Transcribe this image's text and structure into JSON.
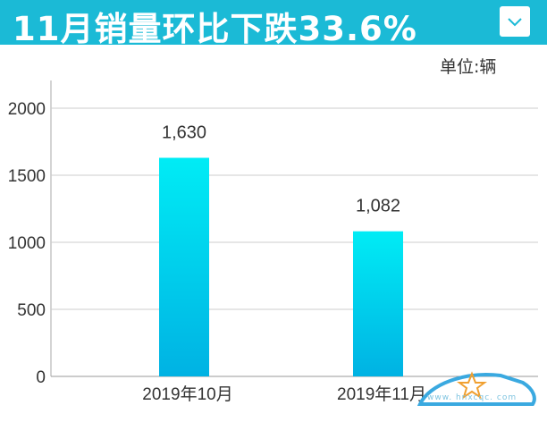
{
  "header": {
    "title": "11月销量环比下跌33.6%",
    "dropdown_icon": "chevron-down-icon"
  },
  "unit_label": "单位:辆",
  "watermark": {
    "text": "www. hnxcqc. com"
  },
  "chart_data": {
    "type": "bar",
    "title": "11月销量环比下跌33.6%",
    "categories": [
      "2019年10月",
      "2019年11月"
    ],
    "values": [
      1630,
      1082
    ],
    "data_labels": [
      "1,630",
      "1,082"
    ],
    "yticks": [
      "0",
      "500",
      "1000",
      "1500",
      "2000"
    ],
    "ylim": [
      0,
      2000
    ],
    "grid": true,
    "unit": "单位:辆",
    "colors": {
      "bar_top": "#00ecf5",
      "bar_bottom": "#00b2e3",
      "header": "#1bbad6"
    }
  }
}
